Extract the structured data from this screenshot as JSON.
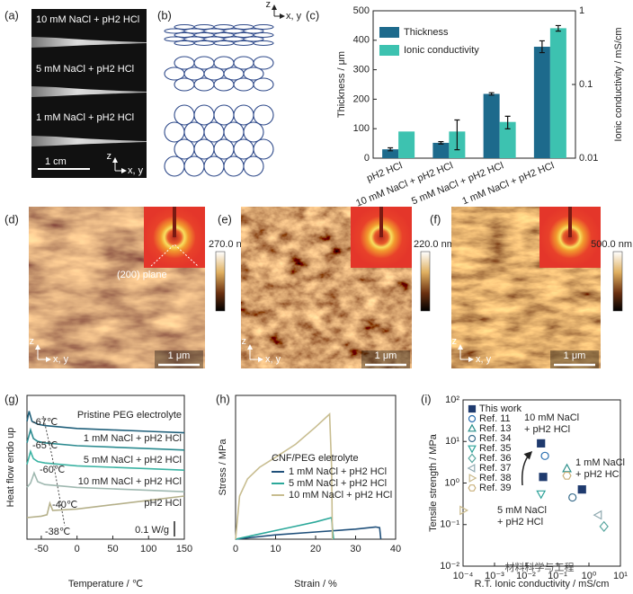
{
  "panels": [
    {
      "label": "(a)",
      "texts": [
        "10 mM NaCl + pH2 HCl",
        "5 mM NaCl + pH2 HCl",
        "1 mM NaCl + pH2 HCl",
        "1 cm",
        "z",
        "x, y"
      ]
    },
    {
      "label": "(b)",
      "texts": [
        "z",
        "x, y"
      ]
    },
    {
      "label": "(d)",
      "texts": [
        "270.0 nm",
        "(200) plane",
        "1 μm",
        "z",
        "x, y"
      ]
    },
    {
      "label": "(e)",
      "texts": [
        "220.0 nm",
        "1 μm",
        "z",
        "x, y"
      ]
    },
    {
      "label": "(f)",
      "texts": [
        "500.0 nm",
        "1 μm",
        "z",
        "x, y"
      ]
    }
  ],
  "watermark": "材料科学与工程",
  "chart_data": [
    {
      "type": "bar",
      "panel": "(c)",
      "ylabel": "Thickness / μm",
      "y2label": "Ionic conductivity / mS/cm",
      "categories": [
        "pH2 HCl",
        "10 mM NaCl + pH2 HCl",
        "5 mM NaCl + pH2 HCl",
        "1 mM NaCl + pH2 HCl"
      ],
      "series": [
        {
          "name": "Thickness",
          "color": "#1d6a8c",
          "values": [
            30,
            52,
            218,
            378
          ],
          "errors": [
            5,
            4,
            4,
            20
          ]
        },
        {
          "name": "Ionic conductivity",
          "color": "#3dc2b0",
          "axis": "y2",
          "values": [
            0.023,
            0.023,
            0.031,
            0.58
          ],
          "errors": [
            null,
            0.01,
            0.006,
            0.05
          ]
        }
      ],
      "ylim": [
        0,
        500
      ],
      "yticks": [
        0,
        100,
        200,
        300,
        400,
        500
      ],
      "y2lim": [
        0.01,
        1
      ],
      "y2ticks": [
        0.01,
        0.1,
        1
      ],
      "y2log": true,
      "legend": "upper left"
    },
    {
      "type": "line",
      "panel": "(g)",
      "xlabel": "Temperature / ℃",
      "ylabel": "Heat flow endo up",
      "xlim": [
        -70,
        150
      ],
      "xticks": [
        -50,
        0,
        50,
        100,
        150
      ],
      "ylim": [
        0,
        10
      ],
      "legend": "inline",
      "series": [
        {
          "name": "Pristine PEG electrolyte",
          "color": "#1f5f7a",
          "x": [
            -70,
            -67,
            -63,
            -55,
            -45,
            0,
            50,
            100,
            150
          ],
          "values": [
            8.2,
            8.9,
            8.2,
            8.0,
            7.9,
            7.7,
            7.6,
            7.5,
            7.4
          ]
        },
        {
          "name": "1 mM NaCl + pH2 HCl",
          "color": "#2b8a8f",
          "x": [
            -70,
            -65,
            -61,
            -55,
            -45,
            0,
            50,
            100,
            150
          ],
          "values": [
            6.7,
            7.6,
            7.0,
            6.8,
            6.7,
            6.5,
            6.4,
            6.3,
            6.2
          ]
        },
        {
          "name": "5 mM NaCl + pH2 HCl",
          "color": "#3bb3a3",
          "x": [
            -70,
            -65,
            -61,
            -55,
            -45,
            0,
            50,
            100,
            150
          ],
          "values": [
            5.2,
            6.1,
            5.6,
            5.4,
            5.3,
            5.1,
            5.0,
            4.9,
            4.8
          ]
        },
        {
          "name": "10 mM NaCl + pH2 HCl",
          "color": "#9fb8b0",
          "x": [
            -70,
            -65,
            -60,
            -55,
            -45,
            0,
            50,
            100,
            150
          ],
          "values": [
            3.6,
            3.9,
            4.6,
            4.0,
            3.8,
            3.6,
            3.5,
            3.4,
            3.3
          ]
        },
        {
          "name": "pH2 HCl",
          "color": "#b5b08a",
          "x": [
            -70,
            -50,
            -42,
            -38,
            -34,
            0,
            50,
            100,
            150
          ],
          "values": [
            1.5,
            1.6,
            1.7,
            2.5,
            2.0,
            2.1,
            2.4,
            2.7,
            3.0
          ]
        }
      ],
      "annotations": [
        "-67℃",
        "-65℃",
        "-60℃",
        "-40℃",
        "-38℃"
      ],
      "scale_bar": "0.1 W/g"
    },
    {
      "type": "line",
      "panel": "(h)",
      "xlabel": "Strain / %",
      "ylabel": "Stress / MPa",
      "xlim": [
        0,
        40
      ],
      "xticks": [
        0,
        10,
        20,
        30,
        40
      ],
      "ylim": [
        0,
        10
      ],
      "legend_title": "CNF/PEG eletrolyte",
      "legend": "center right",
      "series": [
        {
          "name": "1 mM NaCl + pH2 HCl",
          "color": "#1f4f7a",
          "x": [
            0,
            10,
            20,
            30,
            35,
            36,
            36.3
          ],
          "values": [
            0,
            0.3,
            0.5,
            0.7,
            0.85,
            0.8,
            0
          ]
        },
        {
          "name": "5 mM NaCl + pH2 HCl",
          "color": "#2ba89a",
          "x": [
            0,
            5,
            10,
            15,
            20,
            24,
            24.3,
            24.5
          ],
          "values": [
            0,
            0.3,
            0.6,
            0.9,
            1.2,
            1.5,
            0.5,
            0
          ]
        },
        {
          "name": "10 mM NaCl + pH2 HCl",
          "color": "#c8bd90",
          "x": [
            0,
            1,
            3,
            6,
            10,
            15,
            20,
            23.5,
            24,
            24.2
          ],
          "values": [
            0,
            3,
            4.2,
            5,
            5.7,
            6.6,
            7.8,
            8.7,
            5,
            0
          ]
        }
      ]
    },
    {
      "type": "scatter",
      "panel": "(i)",
      "xlabel": "R.T. Ionic conductivity / mS/cm",
      "ylabel": "Tensile strength / MPa",
      "xlog": true,
      "ylog": true,
      "xlim": [
        0.0001,
        10
      ],
      "xticks": [
        {
          "value": 0.0001,
          "label": "10⁻⁴"
        },
        {
          "value": 0.001,
          "label": "10⁻³"
        },
        {
          "value": 0.01,
          "label": "10⁻²"
        },
        {
          "value": 0.1,
          "label": "10⁻¹"
        },
        {
          "value": 1,
          "label": "10⁰"
        },
        {
          "value": 10,
          "label": "10¹"
        }
      ],
      "ylim": [
        0.01,
        100
      ],
      "yticks": [
        {
          "value": 0.01,
          "label": "10⁻²"
        },
        {
          "value": 0.1,
          "label": "10⁻¹"
        },
        {
          "value": 1,
          "label": "10⁰"
        },
        {
          "value": 10,
          "label": "10¹"
        },
        {
          "value": 100,
          "label": "10²"
        }
      ],
      "legend": "upper left",
      "series": [
        {
          "name": "This work",
          "color": "#1f3a6e",
          "marker": "square",
          "filled": true,
          "x": [
            0.03,
            0.035,
            0.6
          ],
          "values": [
            9,
            1.4,
            0.7
          ]
        },
        {
          "name": "Ref. 11",
          "color": "#2a6fb0",
          "marker": "circle",
          "x": [
            0.04
          ],
          "values": [
            4.5
          ]
        },
        {
          "name": "Ref. 13",
          "color": "#2a8f8a",
          "marker": "triangle-up",
          "x": [
            0.2
          ],
          "values": [
            2.2
          ]
        },
        {
          "name": "Ref. 34",
          "color": "#3a6d8c",
          "marker": "circle",
          "x": [
            0.3
          ],
          "values": [
            0.45
          ]
        },
        {
          "name": "Ref. 35",
          "color": "#2fa39a",
          "marker": "triangle-down",
          "x": [
            0.03
          ],
          "values": [
            0.55
          ]
        },
        {
          "name": "Ref. 36",
          "color": "#5aa7a0",
          "marker": "diamond",
          "x": [
            3
          ],
          "values": [
            0.09
          ]
        },
        {
          "name": "Ref. 37",
          "color": "#8fa9b0",
          "marker": "triangle-left",
          "x": [
            2
          ],
          "values": [
            0.17
          ]
        },
        {
          "name": "Ref. 38",
          "color": "#c9b98a",
          "marker": "triangle-right",
          "x": [
            0.0001
          ],
          "values": [
            0.22
          ]
        },
        {
          "name": "Ref. 39",
          "color": "#c9b07a",
          "marker": "hexagon",
          "x": [
            0.2
          ],
          "values": [
            1.5
          ]
        }
      ],
      "annotations": [
        "10 mM NaCl",
        "+ pH2 HCl",
        "5 mM NaCl",
        "+ pH2 HCl",
        "1 mM NaCl",
        "+ pH2 HCl"
      ]
    }
  ]
}
